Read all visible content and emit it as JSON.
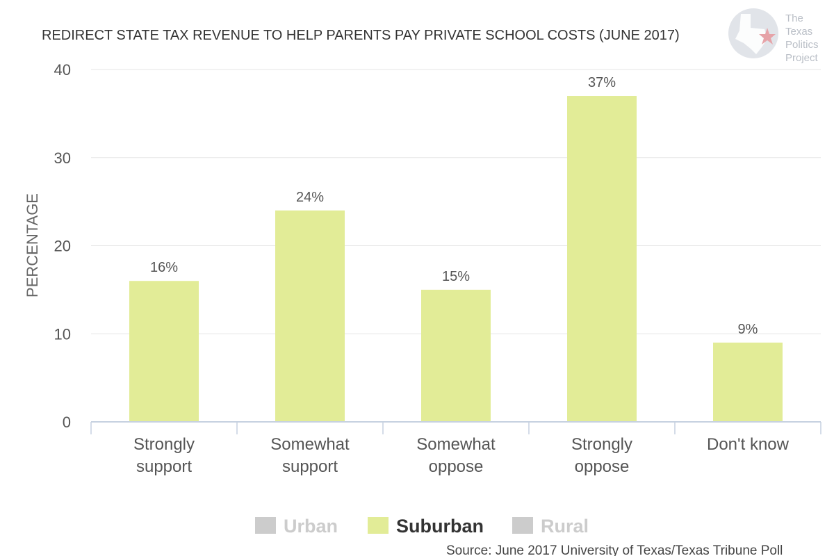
{
  "chart_data": {
    "type": "bar",
    "title": "REDIRECT STATE TAX REVENUE TO HELP PARENTS PAY PRIVATE SCHOOL COSTS (JUNE 2017)",
    "ylabel": "PERCENTAGE",
    "xlabel": "",
    "ylim": [
      0,
      40
    ],
    "yticks": [
      0,
      10,
      20,
      30,
      40
    ],
    "grid": true,
    "categories": [
      [
        "Strongly",
        "support"
      ],
      [
        "Somewhat",
        "support"
      ],
      [
        "Somewhat",
        "oppose"
      ],
      [
        "Strongly",
        "oppose"
      ],
      [
        "Don't know"
      ]
    ],
    "series": [
      {
        "name": "Suburban",
        "values": [
          16,
          24,
          15,
          37,
          9
        ],
        "labels": [
          "16%",
          "24%",
          "15%",
          "37%",
          "9%"
        ],
        "color": "#e2ec97"
      }
    ],
    "legend": {
      "placement": "bottom",
      "items": [
        {
          "name": "Urban",
          "active": false,
          "color": "#cccccc"
        },
        {
          "name": "Suburban",
          "active": true,
          "color": "#e2ec97"
        },
        {
          "name": "Rural",
          "active": false,
          "color": "#cccccc"
        }
      ]
    },
    "source": "Source: June 2017 University of Texas/Texas Tribune Poll"
  },
  "logo": {
    "lines": [
      "The",
      "Texas",
      "Politics",
      "Project"
    ],
    "icon": "texas-star-logo-icon",
    "color": "#b9bec6",
    "star_color": "#e6a3a8"
  },
  "colors": {
    "axis": "#c6d1e0",
    "grid": "#e6e6e6",
    "legend_inactive_text": "#cccccc",
    "legend_active_text": "#333333"
  }
}
